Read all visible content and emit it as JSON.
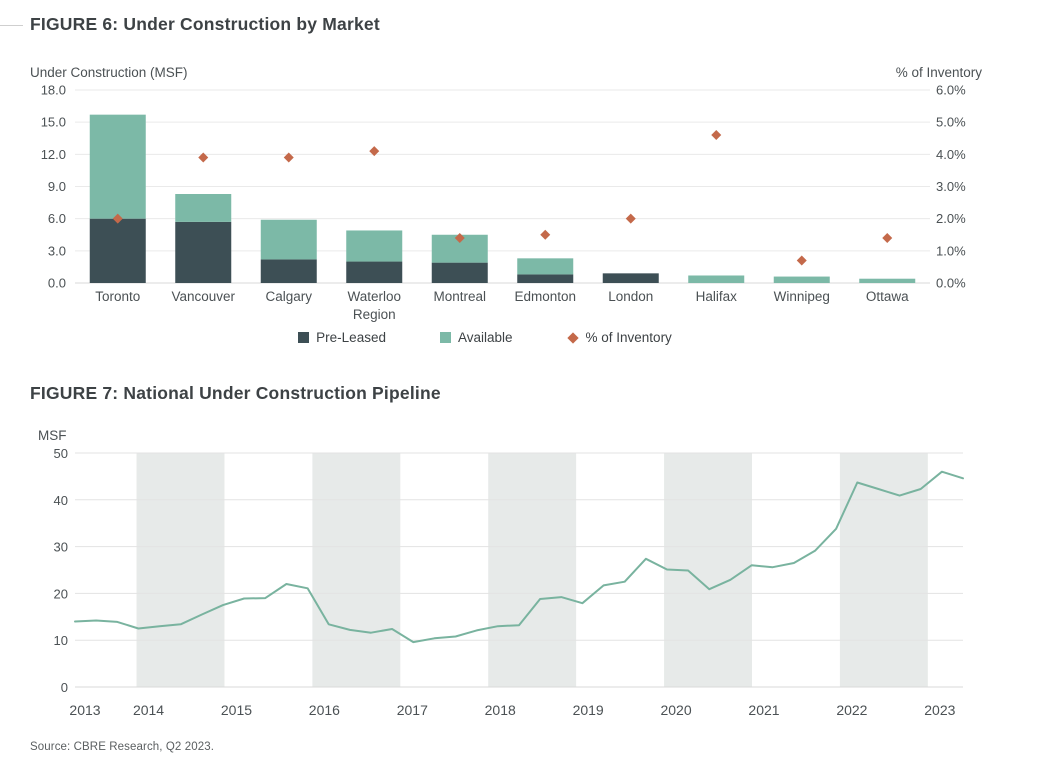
{
  "page": {
    "figure6": {
      "title": "FIGURE 6: Under Construction by Market",
      "left_axis_label": "Under Construction (MSF)",
      "right_axis_label": "% of Inventory",
      "legend": [
        {
          "label": "Pre-Leased",
          "marker": "square",
          "color": "#3d4f55"
        },
        {
          "label": "Available",
          "marker": "square",
          "color": "#7cb9a7"
        },
        {
          "label": "% of Inventory",
          "marker": "diamond",
          "color": "#c4694a"
        }
      ]
    },
    "figure7": {
      "title": "FIGURE 7: National Under Construction Pipeline",
      "y_axis_label": "MSF"
    },
    "source": "Source: CBRE Research, Q2 2023."
  },
  "chart_data": [
    {
      "type": "bar",
      "subtype": "stacked-bars-with-dual-axis-scatter",
      "title": "FIGURE 6: Under Construction by Market",
      "categories": [
        "Toronto",
        "Vancouver",
        "Calgary",
        "Waterloo Region",
        "Montreal",
        "Edmonton",
        "London",
        "Halifax",
        "Winnipeg",
        "Ottawa"
      ],
      "series": [
        {
          "name": "Pre-Leased",
          "axis": "left",
          "color": "#3d4f55",
          "values": [
            6.0,
            5.7,
            2.2,
            2.0,
            1.9,
            0.8,
            0.9,
            0.0,
            0.0,
            0.0
          ]
        },
        {
          "name": "Available",
          "axis": "left",
          "color": "#7cb9a7",
          "values": [
            9.7,
            2.6,
            3.7,
            2.9,
            2.6,
            1.5,
            0.0,
            0.7,
            0.6,
            0.4
          ]
        },
        {
          "name": "% of Inventory",
          "axis": "right",
          "marker": "diamond",
          "color": "#c4694a",
          "values": [
            2.0,
            3.9,
            3.9,
            4.1,
            1.4,
            1.5,
            2.0,
            4.6,
            0.7,
            1.4
          ]
        }
      ],
      "left_axis": {
        "label": "Under Construction (MSF)",
        "lim": [
          0,
          18
        ],
        "ticks": [
          18,
          15,
          12,
          9,
          6,
          3,
          0
        ],
        "tick_format": "0.0"
      },
      "right_axis": {
        "label": "% of Inventory",
        "lim": [
          0,
          6
        ],
        "ticks": [
          6,
          5,
          4,
          3,
          2,
          1,
          0
        ],
        "tick_format": "0.0%"
      },
      "grid": true,
      "legend_position": "bottom"
    },
    {
      "type": "line",
      "title": "FIGURE 7: National Under Construction Pipeline",
      "ylabel": "MSF",
      "ylim": [
        0,
        50
      ],
      "yticks": [
        0,
        10,
        20,
        30,
        40,
        50
      ],
      "x_year_labels": [
        "2013",
        "2014",
        "2015",
        "2016",
        "2017",
        "2018",
        "2019",
        "2020",
        "2021",
        "2022",
        "2023"
      ],
      "frequency": "quarterly",
      "x_start_year_frac": 2013.3,
      "x_end_year_frac": 2023.4,
      "shaded_years": [
        2014,
        2016,
        2018,
        2020,
        2022
      ],
      "line_color": "#79b39f",
      "band_color": "#e7eae9",
      "values": [
        14.0,
        14.2,
        13.9,
        12.5,
        13.0,
        13.4,
        15.5,
        17.5,
        18.9,
        19.0,
        22.0,
        21.1,
        13.4,
        12.2,
        11.6,
        12.4,
        9.6,
        10.4,
        10.8,
        12.1,
        13.0,
        13.2,
        18.8,
        19.2,
        17.9,
        21.7,
        22.5,
        27.4,
        25.1,
        24.9,
        20.9,
        22.9,
        26.0,
        25.6,
        26.5,
        29.1,
        33.8,
        43.7,
        42.3,
        40.9,
        42.3,
        46.0,
        44.6
      ]
    }
  ]
}
